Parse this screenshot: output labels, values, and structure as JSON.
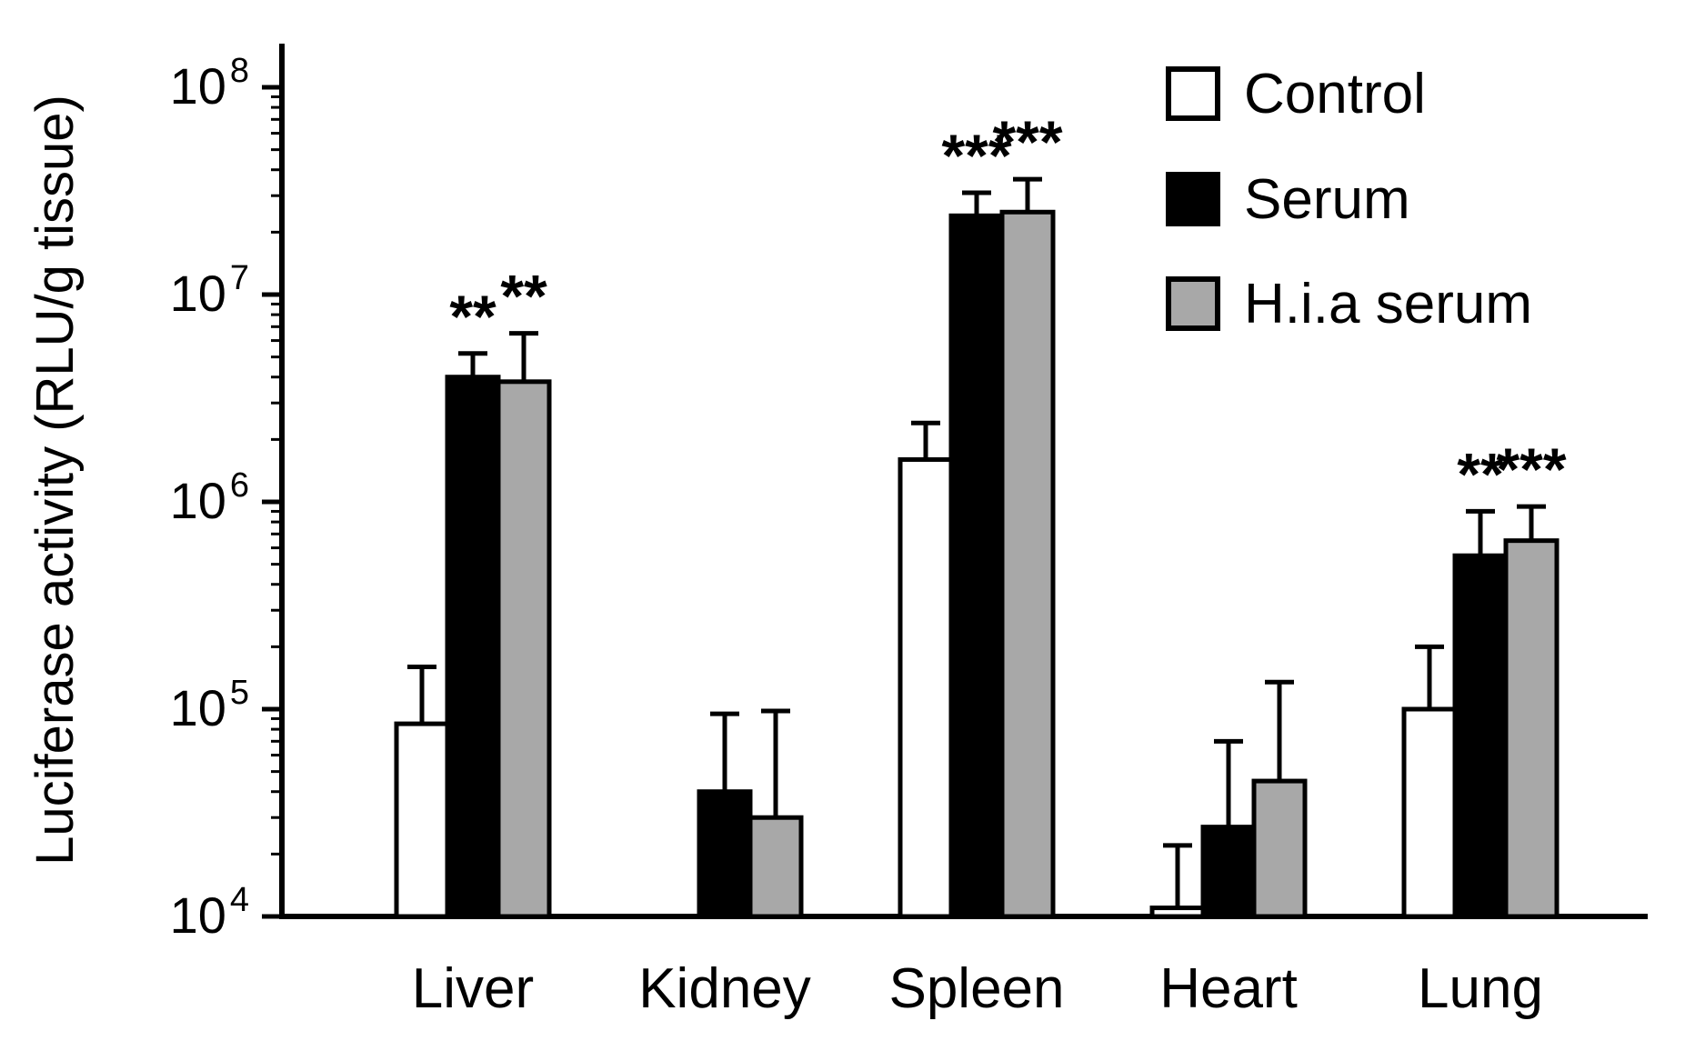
{
  "chart_data": {
    "type": "bar",
    "title": "",
    "xlabel": "",
    "ylabel": "Luciferase activity (RLU/g tissue)",
    "y_scale": "log",
    "ylim": [
      10000,
      100000000
    ],
    "y_ticks": [
      "10^4",
      "10^5",
      "10^6",
      "10^7",
      "10^8"
    ],
    "grid": false,
    "categories": [
      "Liver",
      "Kidney",
      "Spleen",
      "Heart",
      "Lung"
    ],
    "series": [
      {
        "name": "Control",
        "color": "#ffffff",
        "values": [
          85000,
          10000,
          1600000,
          11000,
          100000
        ],
        "error_top": [
          160000,
          10000,
          2400000,
          22000,
          200000
        ],
        "sig": [
          "",
          "",
          "",
          "",
          ""
        ]
      },
      {
        "name": "Serum",
        "color": "#000000",
        "values": [
          4000000,
          40000,
          24000000,
          27000,
          550000
        ],
        "error_top": [
          5200000,
          95000,
          31000000,
          70000,
          900000
        ],
        "sig": [
          "**",
          "",
          "***",
          "",
          "**"
        ]
      },
      {
        "name": "H.i.a serum",
        "color": "#a8a8a8",
        "values": [
          3800000,
          30000,
          25000000,
          45000,
          650000
        ],
        "error_top": [
          6500000,
          98000,
          36000000,
          135000,
          950000
        ],
        "sig": [
          "**",
          "",
          "***",
          "",
          "***"
        ]
      }
    ],
    "legend": {
      "position": "top-right",
      "entries": [
        "Control",
        "Serum",
        "H.i.a serum"
      ]
    },
    "colors": {
      "axis": "#000000",
      "background": "#ffffff",
      "bar_outline": "#000000"
    }
  }
}
